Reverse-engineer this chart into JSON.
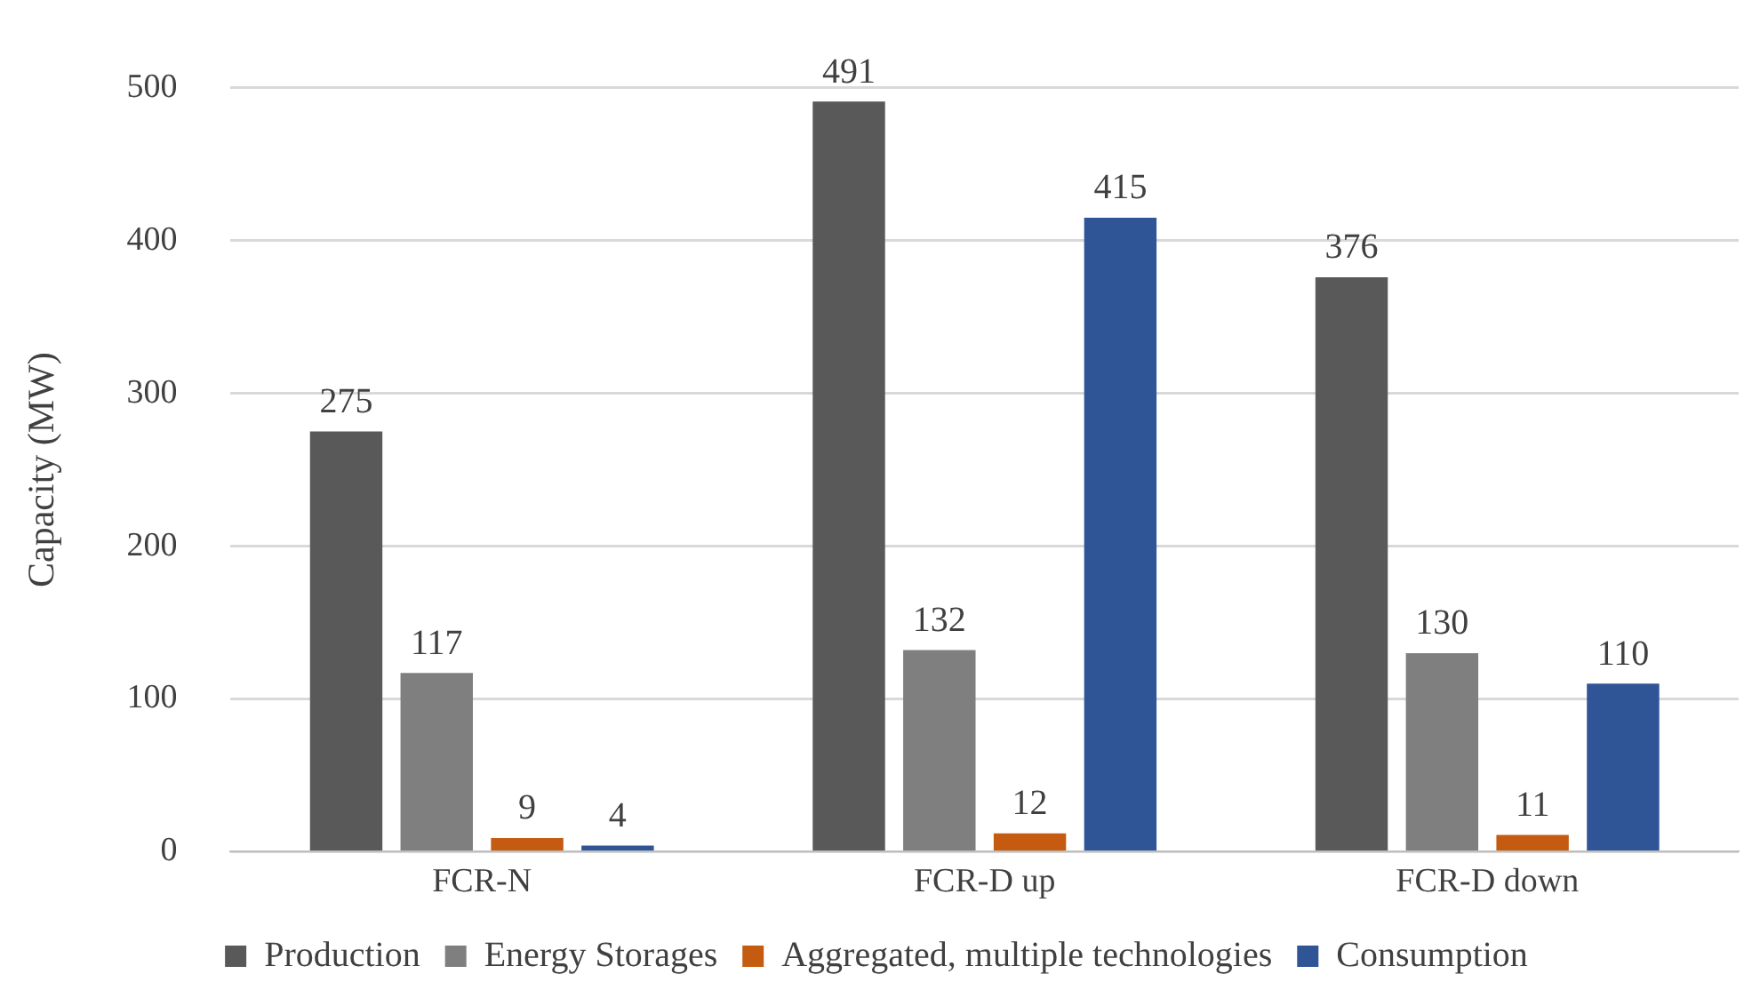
{
  "chart_data": {
    "type": "bar",
    "ylabel": "Capacity (MW)",
    "categories": [
      "FCR-N",
      "FCR-D up",
      "FCR-D down"
    ],
    "series": [
      {
        "name": "Production",
        "color": "#595959",
        "values": [
          275,
          491,
          376
        ]
      },
      {
        "name": "Energy Storages",
        "color": "#7f7f7f",
        "values": [
          117,
          132,
          130
        ]
      },
      {
        "name": "Aggregated, multiple technologies",
        "color": "#c55a11",
        "values": [
          9,
          12,
          11
        ]
      },
      {
        "name": "Consumption",
        "color": "#2f5597",
        "values": [
          4,
          415,
          110
        ]
      }
    ],
    "ylim": [
      0,
      500
    ],
    "yticks": [
      0,
      100,
      200,
      300,
      400,
      500
    ],
    "grid": "y",
    "legend": "bottom",
    "data_labels": true
  }
}
